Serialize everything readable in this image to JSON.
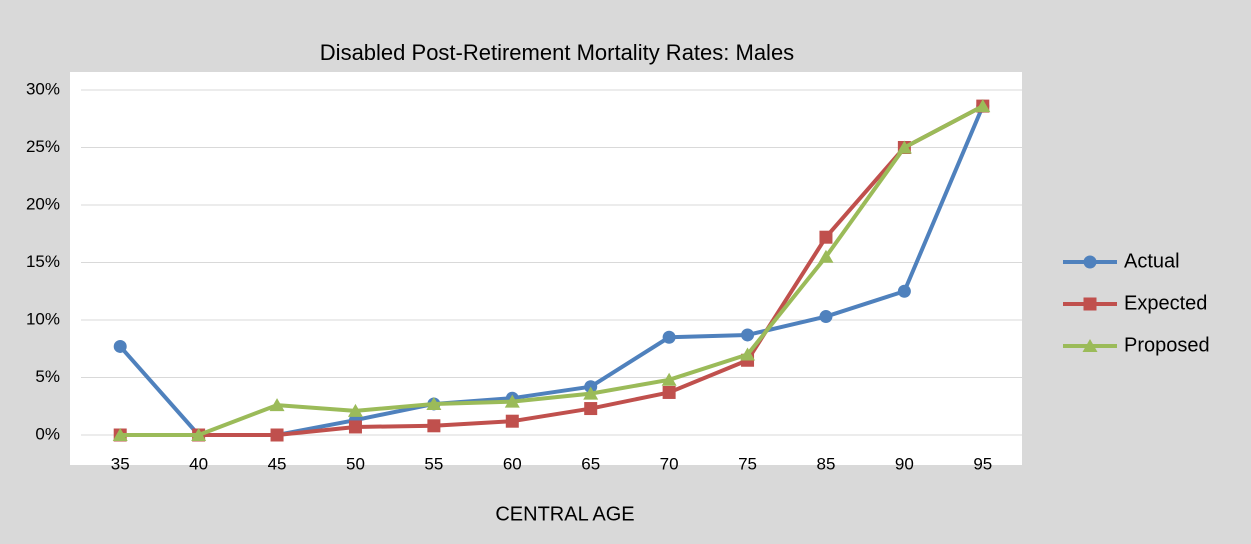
{
  "chart_data": {
    "type": "line",
    "title": "Disabled Post-Retirement Mortality Rates:  Males",
    "x_label": "CENTRAL AGE",
    "categories": [
      35,
      40,
      45,
      50,
      55,
      60,
      65,
      70,
      75,
      85,
      90,
      95
    ],
    "series": [
      {
        "name": "Actual",
        "color": "#4f81bd",
        "marker": "circle",
        "values": [
          7.7,
          0,
          0,
          1.3,
          2.7,
          3.2,
          4.2,
          8.5,
          8.7,
          10.3,
          12.5,
          28.6
        ]
      },
      {
        "name": "Expected",
        "color": "#c0504d",
        "marker": "square",
        "values": [
          0,
          0,
          0,
          0.7,
          0.8,
          1.2,
          2.3,
          3.7,
          6.5,
          17.2,
          25.0,
          28.6
        ]
      },
      {
        "name": "Proposed",
        "color": "#9bbb59",
        "marker": "triangle",
        "values": [
          0,
          0,
          2.6,
          2.1,
          2.7,
          2.9,
          3.6,
          4.8,
          7.0,
          15.5,
          25.0,
          28.6
        ]
      }
    ],
    "ylim": [
      0,
      30
    ],
    "yticks": [
      {
        "value": 0,
        "label": "0%"
      },
      {
        "value": 5,
        "label": "5%"
      },
      {
        "value": 10,
        "label": "10%"
      },
      {
        "value": 15,
        "label": "15%"
      },
      {
        "value": 20,
        "label": "20%"
      },
      {
        "value": 25,
        "label": "25%"
      },
      {
        "value": 30,
        "label": "30%"
      }
    ],
    "grid": true,
    "legend": "right"
  }
}
